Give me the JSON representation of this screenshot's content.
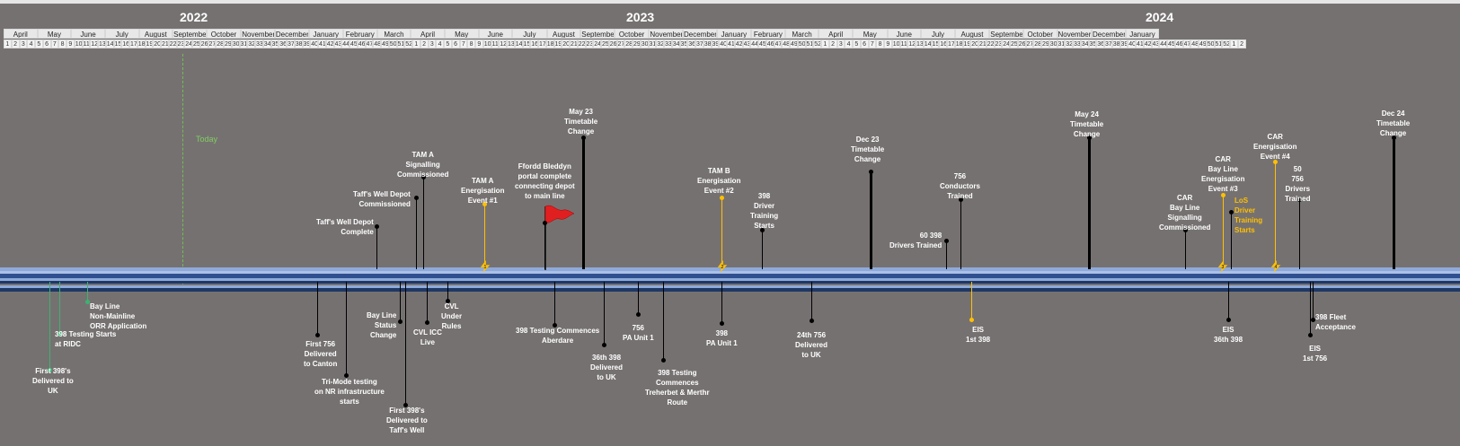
{
  "years": [
    "2022",
    "2023",
    "2024"
  ],
  "months": [
    "April",
    "May",
    "June",
    "July",
    "August",
    "September",
    "October",
    "November",
    "December",
    "January",
    "February",
    "March",
    "April",
    "May",
    "June",
    "July",
    "August",
    "September",
    "October",
    "November",
    "December",
    "January",
    "February",
    "March",
    "April",
    "May",
    "June",
    "July",
    "August",
    "September",
    "October",
    "November",
    "December",
    "January"
  ],
  "weeks": [
    "1",
    "2",
    "3",
    "4",
    "5",
    "6",
    "7",
    "8",
    "9",
    "10",
    "11",
    "12",
    "13",
    "14",
    "15",
    "16",
    "17",
    "18",
    "19",
    "20",
    "21",
    "22",
    "23",
    "24",
    "25",
    "26",
    "27",
    "28",
    "29",
    "30",
    "31",
    "32",
    "33",
    "34",
    "35",
    "36",
    "37",
    "38",
    "39",
    "40",
    "41",
    "42",
    "43",
    "44",
    "45",
    "46",
    "47",
    "48",
    "49",
    "50",
    "51",
    "52",
    "1",
    "2",
    "3",
    "4",
    "5",
    "6",
    "7",
    "8",
    "9",
    "10",
    "11",
    "12",
    "13",
    "14",
    "15",
    "16",
    "17",
    "18",
    "19",
    "20",
    "21",
    "22",
    "23",
    "24",
    "25",
    "26",
    "27",
    "28",
    "29",
    "30",
    "31",
    "32",
    "33",
    "34",
    "35",
    "36",
    "37",
    "38",
    "39",
    "40",
    "41",
    "42",
    "43",
    "44",
    "45",
    "46",
    "47",
    "48",
    "49",
    "50",
    "51",
    "52",
    "1",
    "2",
    "3",
    "4",
    "5",
    "6",
    "7",
    "8",
    "9",
    "10",
    "11",
    "12",
    "13",
    "14",
    "15",
    "16",
    "17",
    "18",
    "19",
    "20",
    "21",
    "22",
    "23",
    "24",
    "25",
    "26",
    "27",
    "28",
    "29",
    "30",
    "31",
    "32",
    "33",
    "34",
    "35",
    "36",
    "37",
    "38",
    "39",
    "40",
    "41",
    "42",
    "43",
    "44",
    "45",
    "46",
    "47",
    "48",
    "49",
    "50",
    "51",
    "52",
    "1",
    "2"
  ],
  "today_label": "Today",
  "colors": {
    "background": "#767171",
    "today": "#6fbf4f",
    "gold": "#ffc000",
    "band_light": "#8eaadb",
    "band_dark": "#2f4f8f"
  },
  "events_above": [
    {
      "label": "Taff's Well  Depot\nComplete"
    },
    {
      "label": "Taff's Well  Depot\nCommissioned"
    },
    {
      "label": "TAM A\nSignalling\nCommissioned"
    },
    {
      "label": "TAM A\nEnergisation\nEvent #1",
      "badge": "1"
    },
    {
      "label": "Ffordd Bleddyn\nportal complete\nconnecting depot\nto main line"
    },
    {
      "label": "May 23\nTimetable\nChange"
    },
    {
      "label": "TAM B\nEnergisation\nEvent #2",
      "badge": "2"
    },
    {
      "label": "398\nDriver\nTraining\nStarts"
    },
    {
      "label": "Dec 23\nTimetable\nChange"
    },
    {
      "label": "60 398\nDrivers Trained"
    },
    {
      "label": "756\nConductors\nTrained"
    },
    {
      "label": "May 24\nTimetable\nChange"
    },
    {
      "label": "CAR\nBay Line\nSignalling\nCommissioned"
    },
    {
      "label": "CAR\nBay Line\nEnergisation\nEvent #3",
      "badge": "3"
    },
    {
      "label": "LoS\nDriver\nTraining\nStarts"
    },
    {
      "label": "CAR\nEnergisation\nEvent #4",
      "badge": "4"
    },
    {
      "label": "50\n756\nDrivers\nTrained"
    },
    {
      "label": "Dec 24\nTimetable\nChange"
    }
  ],
  "events_below": [
    {
      "label": "First 398's\nDelivered to\nUK"
    },
    {
      "label": "398 Testing Starts\nat RIDC"
    },
    {
      "label": "Bay Line\nNon-Mainline\nORR Application"
    },
    {
      "label": "First 756\nDelivered\nto Canton"
    },
    {
      "label": "Tri-Mode testing\non NR infrastructure\nstarts"
    },
    {
      "label": "Bay Line\nStatus\nChange"
    },
    {
      "label": "First 398's\nDelivered to\nTaff's Well"
    },
    {
      "label": "CVL ICC\nLive"
    },
    {
      "label": "CVL\nUnder\nRules"
    },
    {
      "label": "398 Testing Commences\nAberdare"
    },
    {
      "label": "36th 398\nDelivered\nto UK"
    },
    {
      "label": "756\nPA Unit 1"
    },
    {
      "label": "398 Testing\nCommences\nTreherbet & Merthr\nRoute"
    },
    {
      "label": "398\nPA Unit 1"
    },
    {
      "label": "24th 756\nDelivered\nto UK"
    },
    {
      "label": "EIS\n1st 398"
    },
    {
      "label": "EIS\n36th 398"
    },
    {
      "label": "EIS\n1st 756"
    },
    {
      "label": "398 Fleet\nAcceptance"
    }
  ]
}
